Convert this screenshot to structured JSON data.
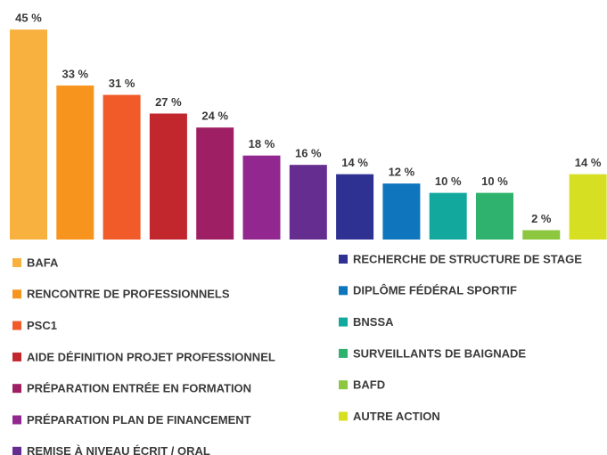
{
  "chart_data": {
    "type": "bar",
    "categories": [
      "BAFA",
      "RENCONTRE DE PROFESSIONNELS",
      "PSC1",
      "AIDE DÉFINITION PROJET PROFESSIONNEL",
      "PRÉPARATION ENTRÉE EN FORMATION",
      "PRÉPARATION PLAN DE FINANCEMENT",
      "REMISE À NIVEAU ÉCRIT / ORAL",
      "RECHERCHE DE STRUCTURE DE STAGE",
      "DIPLÔME FÉDÉRAL SPORTIF",
      "BNSSA",
      "SURVEILLANTS DE BAIGNADE",
      "BAFD",
      "AUTRE ACTION"
    ],
    "values": [
      45,
      33,
      31,
      27,
      24,
      18,
      16,
      14,
      12,
      10,
      10,
      2,
      14
    ],
    "value_labels": [
      "45 %",
      "33 %",
      "31 %",
      "27 %",
      "24 %",
      "18 %",
      "16 %",
      "14 %",
      "12 %",
      "10 %",
      "10 %",
      "2 %",
      "14 %"
    ],
    "colors": [
      "#f8b13f",
      "#f7941d",
      "#f15a29",
      "#c1272d",
      "#9e1f63",
      "#92278f",
      "#662d91",
      "#2e3192",
      "#0f75bc",
      "#12a89d",
      "#2eb26d",
      "#8dc63f",
      "#d7df23"
    ],
    "legend": "bottom"
  }
}
